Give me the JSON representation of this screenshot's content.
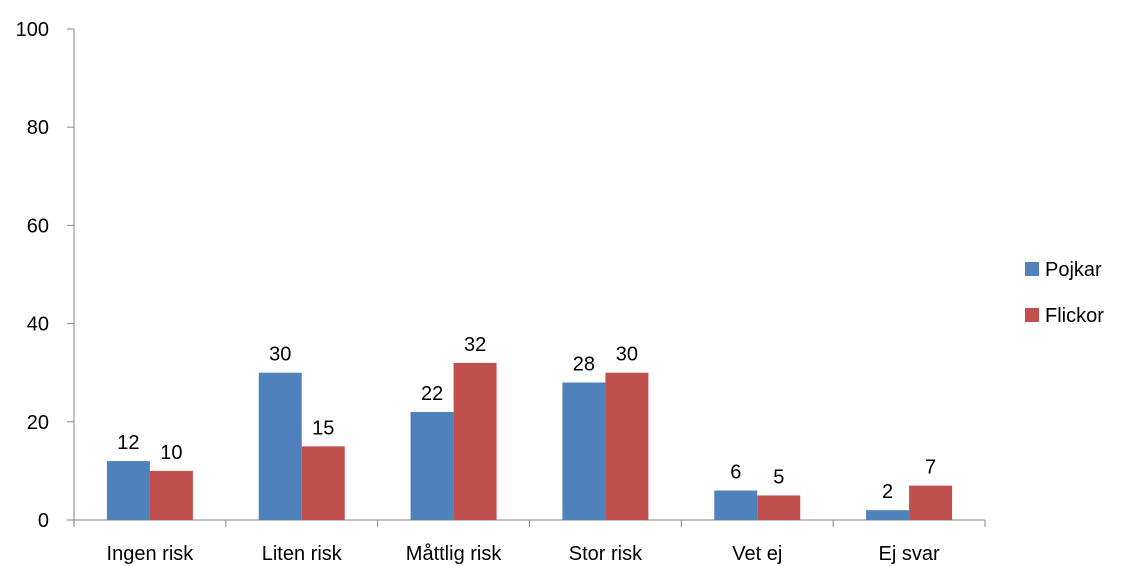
{
  "chart_data": {
    "type": "bar",
    "title": "",
    "xlabel": "",
    "ylabel": "",
    "categories": [
      "Ingen risk",
      "Liten risk",
      "Måttlig risk",
      "Stor risk",
      "Vet ej",
      "Ej svar"
    ],
    "series": [
      {
        "name": "Pojkar",
        "values": [
          12,
          30,
          22,
          28,
          6,
          2
        ],
        "color": "#4F81BD"
      },
      {
        "name": "Flickor",
        "values": [
          10,
          15,
          32,
          30,
          5,
          7
        ],
        "color": "#C0504D"
      }
    ],
    "ylim": [
      0,
      100
    ],
    "yticks": [
      0,
      20,
      40,
      60,
      80,
      100
    ],
    "grid": false,
    "legend_position": "right",
    "data_labels": true
  }
}
